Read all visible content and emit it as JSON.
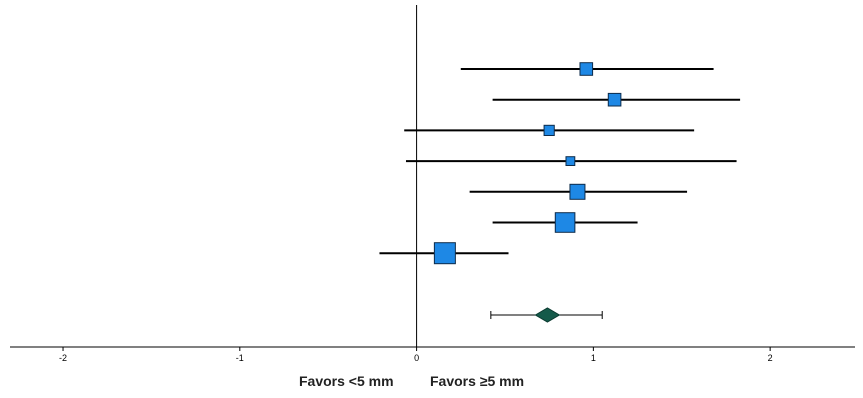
{
  "chart_data": {
    "type": "forest",
    "title": "",
    "xlabel": "",
    "ylabel": "",
    "xlim": [
      -2.3,
      2.48
    ],
    "xticks": [
      -2,
      -1,
      0,
      1,
      2
    ],
    "xtick_labels": [
      "-2",
      "-1",
      "0",
      "1",
      "2"
    ],
    "grid": false,
    "studies": [
      {
        "estimate": 0.96,
        "ci_low": 0.25,
        "ci_high": 1.68,
        "weight_rel": 0.43
      },
      {
        "estimate": 1.12,
        "ci_low": 0.43,
        "ci_high": 1.83,
        "weight_rel": 0.43
      },
      {
        "estimate": 0.75,
        "ci_low": -0.07,
        "ci_high": 1.57,
        "weight_rel": 0.31
      },
      {
        "estimate": 0.87,
        "ci_low": -0.06,
        "ci_high": 1.81,
        "weight_rel": 0.24
      },
      {
        "estimate": 0.91,
        "ci_low": 0.3,
        "ci_high": 1.53,
        "weight_rel": 0.55
      },
      {
        "estimate": 0.84,
        "ci_low": 0.43,
        "ci_high": 1.25,
        "weight_rel": 0.78
      },
      {
        "estimate": 0.16,
        "ci_low": -0.21,
        "ci_high": 0.52,
        "weight_rel": 0.85
      }
    ],
    "summary": {
      "estimate": 0.74,
      "ci_low": 0.42,
      "ci_high": 1.05
    },
    "colors": {
      "study_fill": "#1e88e5",
      "study_stroke": "#0d2b4a",
      "summary_fill": "#145a4a",
      "line": "#000000"
    }
  },
  "labels": {
    "favors_left": "Favors <5 mm",
    "favors_right": "Favors ≥5 mm"
  }
}
